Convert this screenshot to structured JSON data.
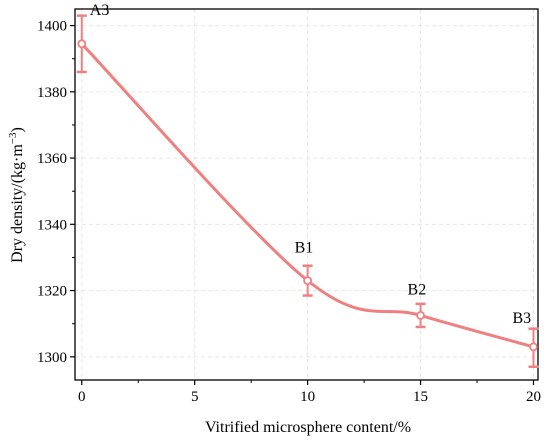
{
  "chart_data": {
    "type": "line",
    "xlabel": "Vitrified microsphere content/%",
    "ylabel_main": "Dry density/(kg·m",
    "ylabel_sup": "−3",
    "ylabel_close": ")",
    "xlim": [
      -0.3,
      20.2
    ],
    "ylim": [
      1293,
      1405
    ],
    "xticks": [
      0,
      5,
      10,
      15,
      20
    ],
    "yticks": [
      1300,
      1320,
      1340,
      1360,
      1380,
      1400
    ],
    "grid": true,
    "series": [
      {
        "color": "#f07f7f",
        "points": [
          {
            "x": 0,
            "y": 1394.5,
            "err_low": 1386,
            "err_high": 1403,
            "label": "A3"
          },
          {
            "x": 10,
            "y": 1323,
            "err_low": 1318.5,
            "err_high": 1327.5,
            "label": "B1"
          },
          {
            "x": 15,
            "y": 1312.5,
            "err_low": 1309,
            "err_high": 1316,
            "label": "B2"
          },
          {
            "x": 20,
            "y": 1303,
            "err_low": 1297,
            "err_high": 1308.5,
            "label": "B3"
          }
        ]
      }
    ]
  }
}
